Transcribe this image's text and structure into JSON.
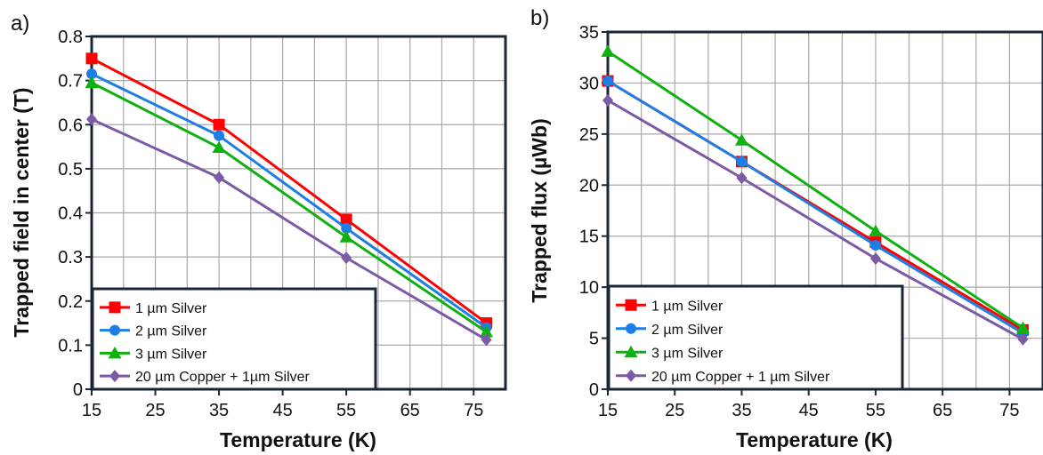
{
  "chart_data": [
    {
      "panel_label": "a)",
      "type": "line",
      "xlabel": "Temperature (K)",
      "ylabel": "Trapped field in center (T)",
      "xlim": [
        15,
        80
      ],
      "ylim": [
        0,
        0.8
      ],
      "xticks": [
        15,
        25,
        35,
        45,
        55,
        65,
        75
      ],
      "yticks": [
        0,
        0.1,
        0.2,
        0.3,
        0.4,
        0.5,
        0.6,
        0.7,
        0.8
      ],
      "ytick_labels": [
        "0",
        "0.1",
        "0.2",
        "0.3",
        "0.4",
        "0.5",
        "0.6",
        "0.7",
        "0.8"
      ],
      "grid": true,
      "legend_position": "bottom-left",
      "x": [
        15,
        35,
        55,
        77
      ],
      "series": [
        {
          "name": "1 µm Silver",
          "color": "#ff0000",
          "marker": "square",
          "values": [
            0.75,
            0.6,
            0.385,
            0.15
          ]
        },
        {
          "name": "2 µm Silver",
          "color": "#1e7ee6",
          "marker": "circle",
          "values": [
            0.715,
            0.575,
            0.365,
            0.14
          ]
        },
        {
          "name": "3 µm Silver",
          "color": "#10b010",
          "marker": "triangle",
          "values": [
            0.695,
            0.548,
            0.345,
            0.13
          ]
        },
        {
          "name": "20 µm Copper + 1µm Silver",
          "color": "#7b5aa6",
          "marker": "diamond",
          "values": [
            0.612,
            0.48,
            0.298,
            0.112
          ]
        }
      ]
    },
    {
      "panel_label": "b)",
      "type": "line",
      "xlabel": "Temperature (K)",
      "ylabel": "Trapped flux (µWb)",
      "xlim": [
        15,
        80
      ],
      "ylim": [
        0,
        35
      ],
      "xticks": [
        15,
        25,
        35,
        45,
        55,
        65,
        75
      ],
      "yticks": [
        0,
        5,
        10,
        15,
        20,
        25,
        30,
        35
      ],
      "ytick_labels": [
        "0",
        "5",
        "10",
        "15",
        "20",
        "25",
        "30",
        "35"
      ],
      "grid": true,
      "legend_position": "bottom-left",
      "x": [
        15,
        35,
        55,
        77
      ],
      "series": [
        {
          "name": "1 µm Silver",
          "color": "#ff0000",
          "marker": "square",
          "values": [
            30.2,
            22.3,
            14.4,
            5.8
          ]
        },
        {
          "name": "2 µm Silver",
          "color": "#1e7ee6",
          "marker": "circle",
          "values": [
            30.2,
            22.3,
            14.1,
            5.5
          ]
        },
        {
          "name": "3 µm Silver",
          "color": "#10b010",
          "marker": "triangle",
          "values": [
            33.1,
            24.4,
            15.5,
            6.0
          ]
        },
        {
          "name": "20 µm Copper + 1 µm Silver",
          "color": "#7b5aa6",
          "marker": "diamond",
          "values": [
            28.3,
            20.7,
            12.8,
            4.9
          ]
        }
      ]
    }
  ]
}
